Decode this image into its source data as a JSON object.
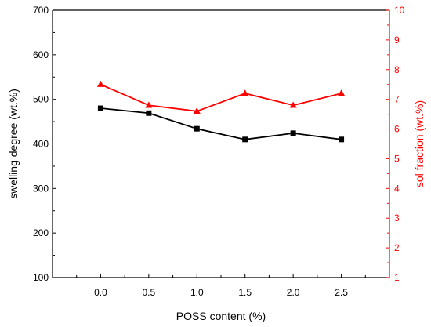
{
  "chart_data": {
    "type": "line",
    "x": [
      0.0,
      0.5,
      1.0,
      1.5,
      2.0,
      2.5
    ],
    "x_tick_labels": [
      "0.0",
      "0.5",
      "1.0",
      "1.5",
      "2.0",
      "2.5"
    ],
    "xlim": [
      -0.5,
      3.0
    ],
    "xlabel": "POSS content (%)",
    "ylabel": "swelling degree (wt.%)",
    "ylim": [
      100,
      700
    ],
    "y_ticks": [
      100,
      200,
      300,
      400,
      500,
      600,
      700
    ],
    "y_tick_labels": [
      "100",
      "200",
      "300",
      "400",
      "500",
      "600",
      "700"
    ],
    "y2label": "sol fraction (wt.%)",
    "y2lim": [
      1,
      10
    ],
    "y2_ticks": [
      1,
      2,
      3,
      4,
      5,
      6,
      7,
      8,
      9,
      10
    ],
    "y2_tick_labels": [
      "1",
      "2",
      "3",
      "4",
      "5",
      "6",
      "7",
      "8",
      "9",
      "10"
    ],
    "grid": false,
    "series": [
      {
        "axis": "left",
        "marker": "square",
        "color": "#000000",
        "values": [
          480,
          469,
          434,
          410,
          424,
          410
        ]
      },
      {
        "axis": "right",
        "marker": "triangle",
        "color": "#ff0000",
        "values": [
          7.5,
          6.8,
          6.6,
          7.2,
          6.8,
          7.2
        ]
      }
    ]
  }
}
